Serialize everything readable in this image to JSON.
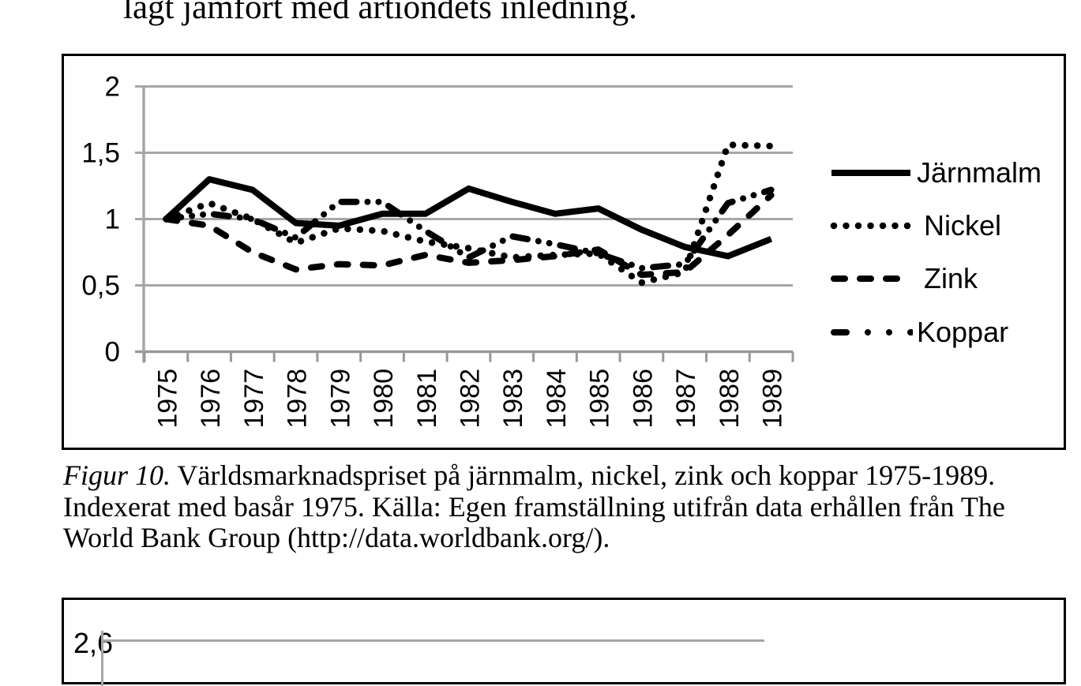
{
  "page": {
    "top_text_fragment": "lagt jämfört med årtiondets inledning."
  },
  "caption": {
    "figure_label": "Figur 10.",
    "line1_rest": " Världsmarknadspriset på järnmalm, nickel, zink och koppar 1975-1989.",
    "line2": "Indexerat med basår 1975. Källa: Egen framställning utifrån data erhållen från The",
    "line3": "World Bank Group (http://data.worldbank.org/)."
  },
  "colors": {
    "line": "#000000",
    "grid": "#a6a6a6",
    "axis": "#999999",
    "border": "#000000",
    "background": "#ffffff"
  },
  "chart_data": [
    {
      "type": "line",
      "title": "",
      "xlabel": "",
      "ylabel": "",
      "x_categories": [
        "1975",
        "1976",
        "1977",
        "1978",
        "1979",
        "1980",
        "1981",
        "1982",
        "1983",
        "1984",
        "1985",
        "1986",
        "1987",
        "1988",
        "1989"
      ],
      "ylim": [
        0,
        2
      ],
      "yticks": [
        0,
        0.5,
        1,
        1.5,
        2
      ],
      "ytick_labels": [
        "0",
        "0,5",
        "1",
        "1,5",
        "2"
      ],
      "grid": "horizontal",
      "legend_position": "right",
      "series": [
        {
          "name": "Järnmalm",
          "style": "solid",
          "values": [
            1.0,
            1.3,
            1.22,
            0.97,
            0.95,
            1.04,
            1.04,
            1.23,
            1.13,
            1.04,
            1.08,
            0.92,
            0.79,
            0.72,
            0.85
          ]
        },
        {
          "name": "Nickel",
          "style": "dotted",
          "values": [
            1.0,
            1.12,
            1.0,
            0.82,
            0.93,
            0.91,
            0.83,
            0.78,
            0.71,
            0.73,
            0.74,
            0.52,
            0.6,
            1.56,
            1.55
          ]
        },
        {
          "name": "Zink",
          "style": "dashed",
          "values": [
            1.0,
            0.95,
            0.75,
            0.62,
            0.66,
            0.65,
            0.73,
            0.67,
            0.69,
            0.72,
            0.77,
            0.58,
            0.6,
            0.88,
            1.18
          ]
        },
        {
          "name": "Koppar",
          "style": "dash-dot-dot",
          "values": [
            1.0,
            1.04,
            1.0,
            0.86,
            1.13,
            1.13,
            0.91,
            0.71,
            0.87,
            0.81,
            0.74,
            0.63,
            0.66,
            1.12,
            1.22
          ]
        }
      ]
    },
    {
      "type": "line",
      "partial": true,
      "ytick_labels": [
        "2,6"
      ]
    }
  ]
}
